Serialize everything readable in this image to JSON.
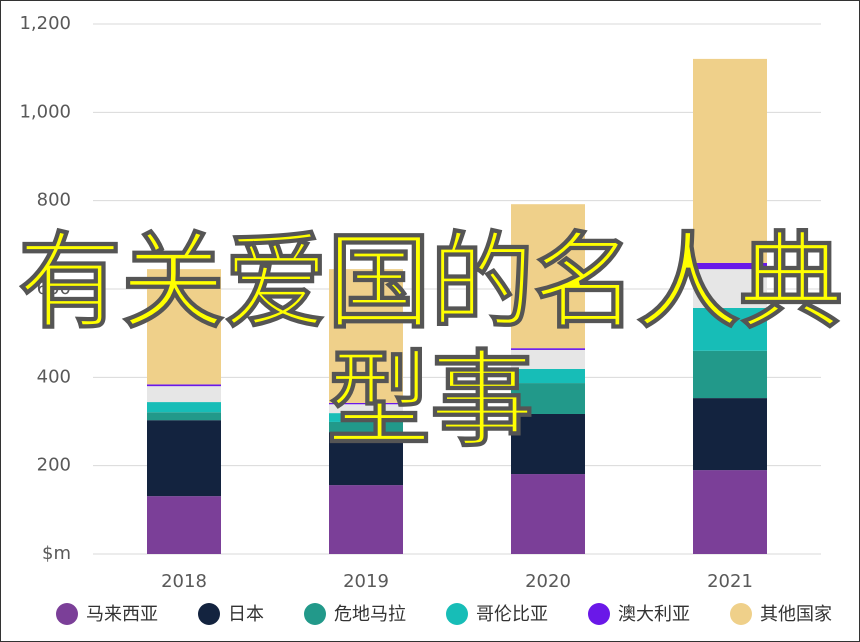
{
  "chart_data": {
    "type": "stacked-bar",
    "categories": [
      "2018",
      "2019",
      "2020",
      "2021"
    ],
    "series": [
      {
        "name": "马来西亚",
        "color": "#7b3f98",
        "values": [
          131,
          156,
          181,
          190
        ]
      },
      {
        "name": "日本",
        "color": "#13233f",
        "values": [
          172,
          120,
          136,
          163
        ]
      },
      {
        "name": "危地马拉",
        "color": "#22998a",
        "values": [
          18,
          23,
          70,
          107
        ]
      },
      {
        "name": "哥伦比亚",
        "color": "#17bdb7",
        "values": [
          23,
          20,
          32,
          97
        ]
      },
      {
        "color": "#e6e6e6",
        "values": [
          36,
          20,
          43,
          88
        ]
      },
      {
        "name": "澳大利亚",
        "color": "#6a18e8",
        "values": [
          4,
          3,
          4,
          14
        ]
      },
      {
        "name": "其他国家",
        "color": "#efd08a",
        "values": [
          261,
          303,
          326,
          462
        ]
      }
    ],
    "ylim": [
      0,
      1200
    ],
    "yticks": [
      {
        "value": 0,
        "label": "$m"
      },
      200,
      400,
      600,
      800,
      {
        "value": 1000,
        "label": "1,000"
      },
      {
        "value": 1200,
        "label": "1,200"
      }
    ],
    "grid": true,
    "overlay_text": "有关爱国的名人典型事"
  }
}
